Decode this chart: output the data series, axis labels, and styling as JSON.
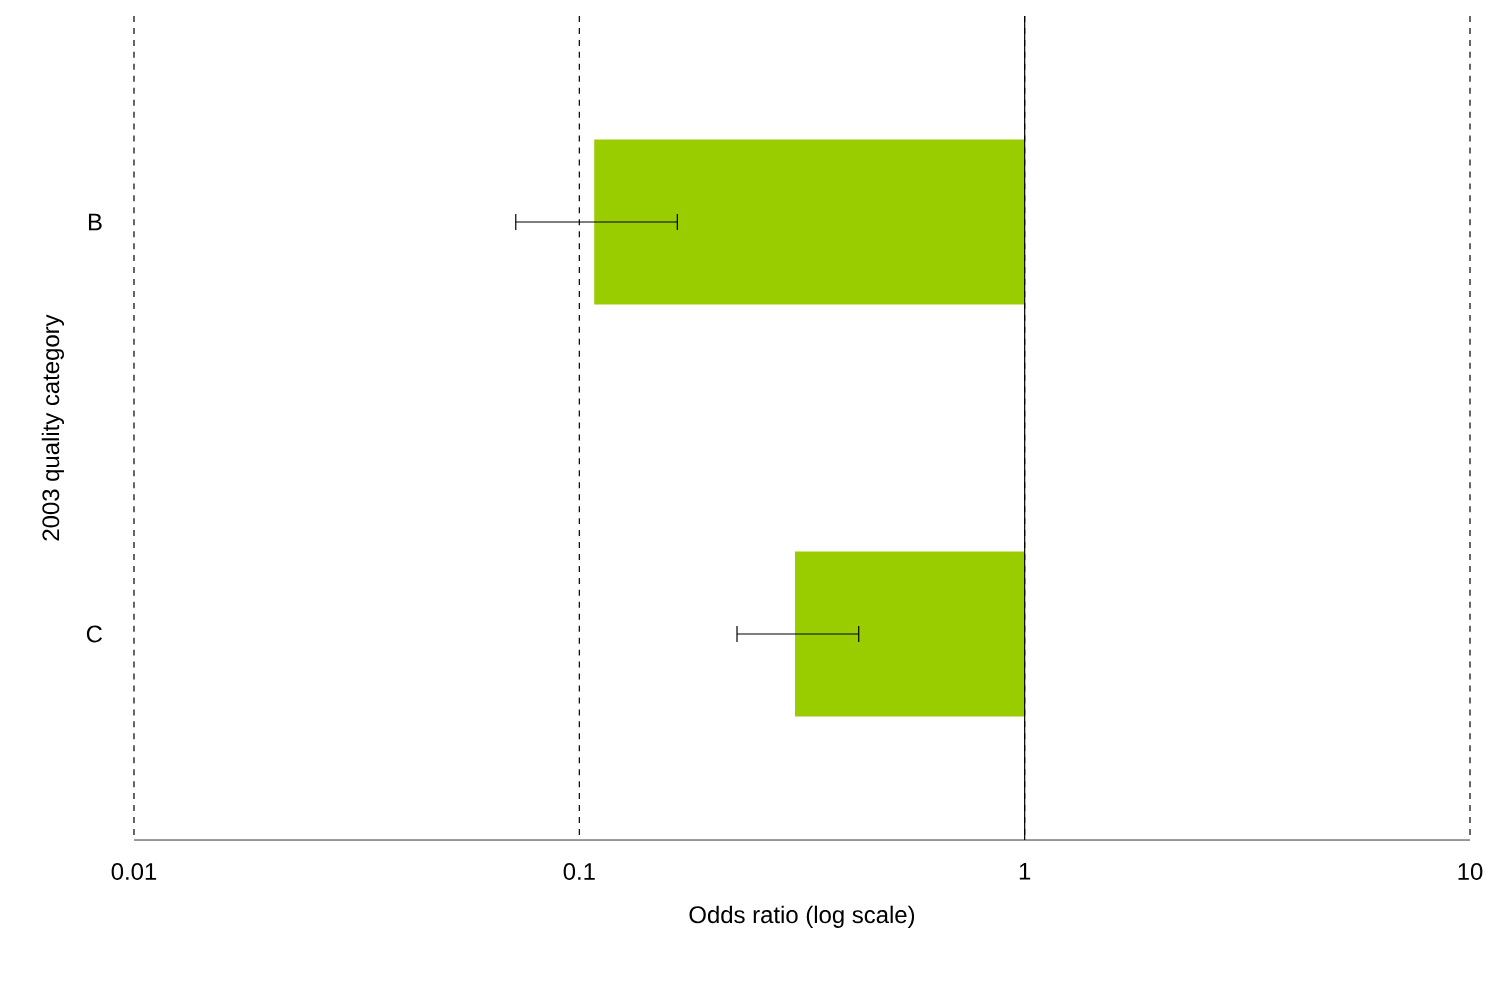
{
  "chart_data": {
    "type": "bar",
    "orientation": "horizontal",
    "xlabel": "Odds ratio (log scale)",
    "ylabel": "2003 quality category",
    "categories": [
      "B",
      "C"
    ],
    "values": [
      -0.892,
      -0.695
    ],
    "base": [
      1,
      1
    ],
    "color": "#9acd00",
    "errors": [
      [
        0.072,
        0.166
      ],
      [
        0.226,
        0.424
      ]
    ],
    "log": "x",
    "xlim": [
      0.01,
      10
    ],
    "xticks": [
      0.01,
      0.1,
      1,
      10
    ],
    "grid": "x",
    "ref_lines": [
      {
        "axis": "x",
        "value": 1
      }
    ]
  }
}
